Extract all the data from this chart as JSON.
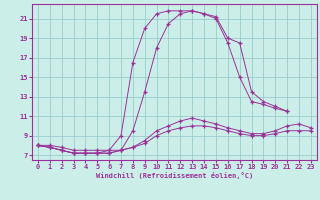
{
  "xlabel": "Windchill (Refroidissement éolien,°C)",
  "background_color": "#cceee8",
  "grid_color": "#99cccc",
  "line_color": "#993399",
  "xlim": [
    -0.5,
    23.5
  ],
  "ylim": [
    6.5,
    22.5
  ],
  "xticks": [
    0,
    1,
    2,
    3,
    4,
    5,
    6,
    7,
    8,
    9,
    10,
    11,
    12,
    13,
    14,
    15,
    16,
    17,
    18,
    19,
    20,
    21,
    22,
    23
  ],
  "yticks": [
    7,
    9,
    11,
    13,
    15,
    17,
    19,
    21
  ],
  "hours": [
    0,
    1,
    2,
    3,
    4,
    5,
    6,
    7,
    8,
    9,
    10,
    11,
    12,
    13,
    14,
    15,
    16,
    17,
    18,
    19,
    20,
    21,
    22,
    23
  ],
  "line1": [
    8.0,
    8.0,
    7.8,
    7.5,
    7.5,
    7.5,
    7.5,
    7.5,
    7.8,
    8.2,
    9.0,
    9.5,
    9.8,
    10.0,
    10.0,
    9.8,
    9.5,
    9.2,
    9.0,
    9.0,
    9.2,
    9.5,
    9.5,
    9.5
  ],
  "line2": [
    8.0,
    7.8,
    7.5,
    7.2,
    7.2,
    7.2,
    7.2,
    7.5,
    7.8,
    8.5,
    9.5,
    10.0,
    10.5,
    10.8,
    10.5,
    10.2,
    9.8,
    9.5,
    9.2,
    9.2,
    9.5,
    10.0,
    10.2,
    9.8
  ],
  "line3": [
    8.0,
    7.8,
    7.5,
    7.2,
    7.2,
    7.2,
    7.2,
    7.5,
    9.5,
    13.5,
    18.0,
    20.5,
    21.5,
    21.8,
    21.5,
    21.0,
    18.5,
    15.0,
    12.5,
    12.2,
    11.8,
    11.5,
    null,
    null
  ],
  "line4": [
    8.0,
    7.8,
    7.5,
    7.2,
    7.2,
    7.2,
    7.5,
    9.0,
    16.5,
    20.0,
    21.5,
    21.8,
    21.8,
    21.8,
    21.5,
    21.2,
    19.0,
    18.5,
    13.5,
    12.5,
    12.0,
    11.5,
    null,
    null
  ]
}
